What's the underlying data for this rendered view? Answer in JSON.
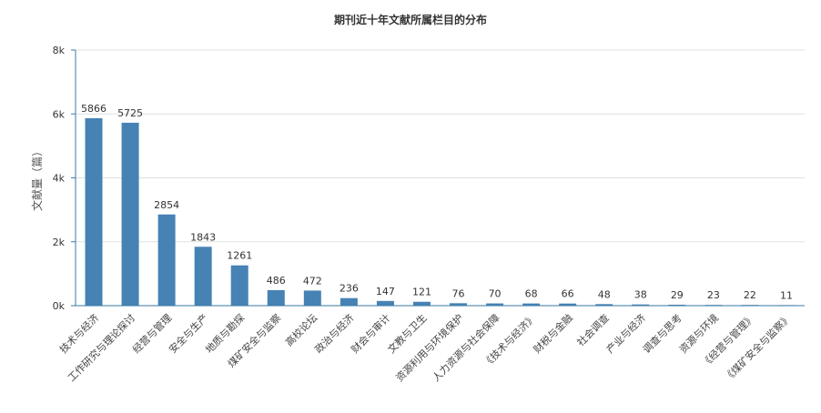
{
  "chart_data": {
    "type": "bar",
    "title": "期刊近十年文献所属栏目的分布",
    "xlabel": "",
    "ylabel": "文献量（篇）",
    "ylim": [
      0,
      8000
    ],
    "yticks": [
      0,
      2000,
      4000,
      6000,
      8000
    ],
    "ytick_labels": [
      "0k",
      "2k",
      "4k",
      "6k",
      "8k"
    ],
    "grid": true,
    "bar_color": "#4682b4",
    "categories": [
      "技术与经济",
      "工作研究与理论探讨",
      "经营与管理",
      "安全与生产",
      "地质与勘探",
      "煤矿安全与监察",
      "高校论坛",
      "政治与经济",
      "财会与审计",
      "文教与卫生",
      "资源利用与环境保护",
      "人力资源与社会保障",
      "《技术与经济》",
      "财税与金融",
      "社会调查",
      "产业与经济",
      "调查与思考",
      "资源与环境",
      "《经营与管理》",
      "《煤矿安全与监察》"
    ],
    "values": [
      5866,
      5725,
      2854,
      1843,
      1261,
      486,
      472,
      236,
      147,
      121,
      76,
      70,
      68,
      66,
      48,
      38,
      29,
      23,
      22,
      11
    ]
  }
}
